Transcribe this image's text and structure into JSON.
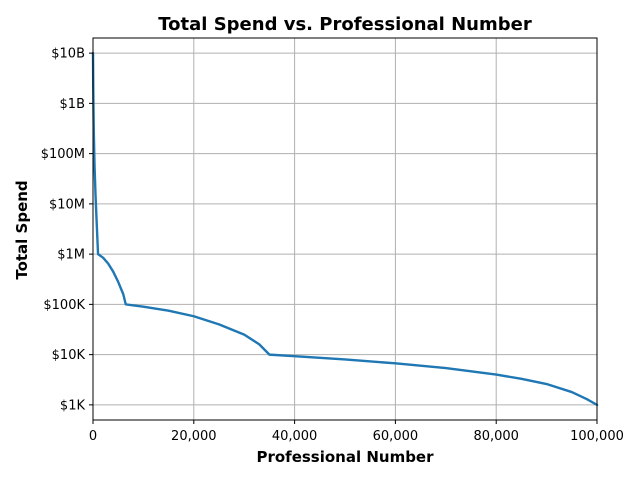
{
  "chart_data": {
    "type": "line",
    "title": "Total Spend vs. Professional Number",
    "xlabel": "Professional Number",
    "ylabel": "Total Spend",
    "xlim": [
      0,
      100000
    ],
    "ylim": [
      500,
      20000000000
    ],
    "yscale": "log",
    "grid": true,
    "x_ticks": [
      {
        "value": 0,
        "label": "0"
      },
      {
        "value": 20000,
        "label": "20,000"
      },
      {
        "value": 40000,
        "label": "40,000"
      },
      {
        "value": 60000,
        "label": "60,000"
      },
      {
        "value": 80000,
        "label": "80,000"
      },
      {
        "value": 100000,
        "label": "100,000"
      }
    ],
    "y_ticks": [
      {
        "value": 1000,
        "label": "$1K"
      },
      {
        "value": 10000,
        "label": "$10K"
      },
      {
        "value": 100000,
        "label": "$100K"
      },
      {
        "value": 1000000,
        "label": "$1M"
      },
      {
        "value": 10000000,
        "label": "$10M"
      },
      {
        "value": 100000000,
        "label": "$100M"
      },
      {
        "value": 1000000000,
        "label": "$1B"
      },
      {
        "value": 10000000000,
        "label": "$10B"
      }
    ],
    "series": [
      {
        "color": "#1f77b4",
        "x": [
          0,
          50,
          150,
          300,
          500,
          700,
          1000,
          2000,
          3000,
          4000,
          5000,
          6000,
          6500,
          10000,
          15000,
          20000,
          25000,
          30000,
          33000,
          35000,
          40000,
          50000,
          60000,
          70000,
          80000,
          85000,
          90000,
          95000,
          98000,
          100000
        ],
        "y": [
          10000000000,
          2000000000,
          300000000,
          60000000,
          15000000,
          5000000,
          1000000,
          850000,
          650000,
          450000,
          280000,
          160000,
          100000,
          90000,
          75000,
          58000,
          40000,
          25000,
          16000,
          10000,
          9300,
          8000,
          6700,
          5400,
          4000,
          3300,
          2600,
          1800,
          1300,
          1000
        ]
      }
    ]
  }
}
